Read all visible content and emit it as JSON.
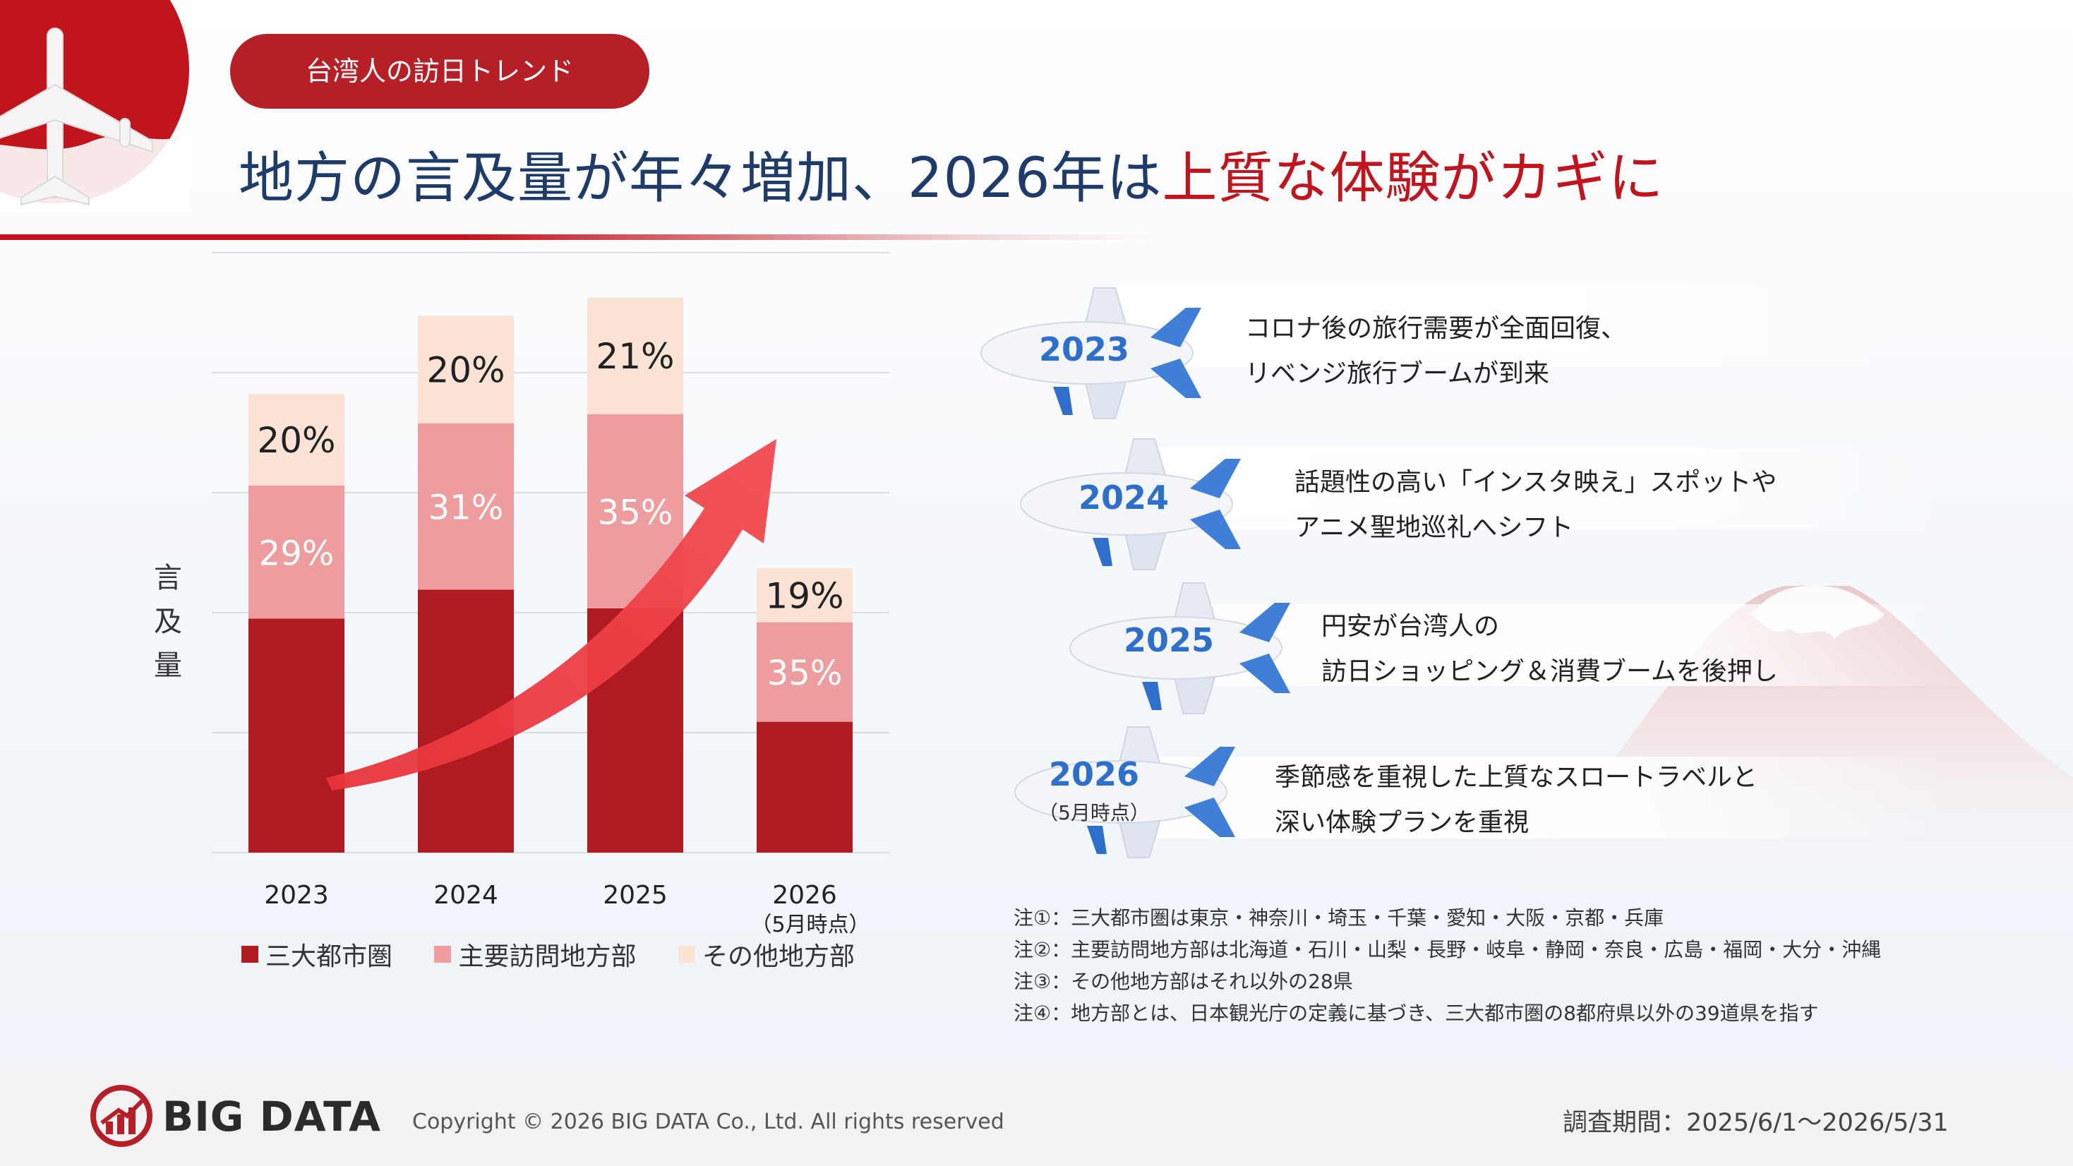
{
  "header": {
    "tag_label": "台湾人の訪日トレンド",
    "title_main": "地方の言及量が年々増加、2026年は",
    "title_highlight": "上質な体験がカギに"
  },
  "colors": {
    "brand_red": "#b71f26",
    "title_navy": "#1f3b6a",
    "series_main": "#b01a21",
    "series_major": "#ee9d9f",
    "series_other": "#fbe4d6",
    "year_blue": "#2f6fcc"
  },
  "chart_data": {
    "type": "bar",
    "stacked": true,
    "ylabel": "言及量",
    "categories": [
      "2023",
      "2024",
      "2025",
      "2026"
    ],
    "category_notes": [
      "",
      "",
      "",
      "（5月時点）"
    ],
    "series": [
      {
        "name": "三大都市圏",
        "values": [
          51,
          49,
          44,
          46
        ]
      },
      {
        "name": "主要訪問地方部",
        "values": [
          29,
          31,
          35,
          35
        ]
      },
      {
        "name": "その他地方部",
        "values": [
          20,
          20,
          21,
          19
        ]
      }
    ],
    "series_colors": [
      "#b01a21",
      "#ee9d9f",
      "#fbe4d6"
    ],
    "relative_totals": [
      100,
      117,
      121,
      62
    ],
    "data_labels": {
      "主要訪問地方部": [
        "29%",
        "31%",
        "35%",
        "35%"
      ],
      "その他地方部": [
        "20%",
        "20%",
        "21%",
        "19%"
      ]
    },
    "gridlines": true,
    "legend_position": "bottom",
    "trend_arrow": "rising"
  },
  "timeline": [
    {
      "year": "2023",
      "sub": "",
      "lines": [
        "コロナ後の旅行需要が全面回復、",
        "リベンジ旅行ブームが到来"
      ]
    },
    {
      "year": "2024",
      "sub": "",
      "lines": [
        "話題性の高い「インスタ映え」スポットや",
        "アニメ聖地巡礼へシフト"
      ]
    },
    {
      "year": "2025",
      "sub": "",
      "lines": [
        "円安が台湾人の",
        "訪日ショッピング＆消費ブームを後押し"
      ]
    },
    {
      "year": "2026",
      "sub": "（5月時点）",
      "lines": [
        "季節感を重視した上質なスロートラベルと",
        "深い体験プランを重視"
      ]
    }
  ],
  "notes": [
    "注①：三大都市圏は東京・神奈川・埼玉・千葉・愛知・大阪・京都・兵庫",
    "注②：主要訪問地方部は北海道・石川・山梨・長野・岐阜・静岡・奈良・広島・福岡・大分・沖縄",
    "注③：その他地方部はそれ以外の28県",
    "注④：地方部とは、日本観光庁の定義に基づき、三大都市圏の8都府県以外の39道県を指す"
  ],
  "footer": {
    "logo_text": "BIG DATA",
    "copyright": "Copyright © 2026 BIG DATA Co., Ltd. All rights reserved",
    "survey_period": "調査期間：2025/6/1～2026/5/31"
  }
}
